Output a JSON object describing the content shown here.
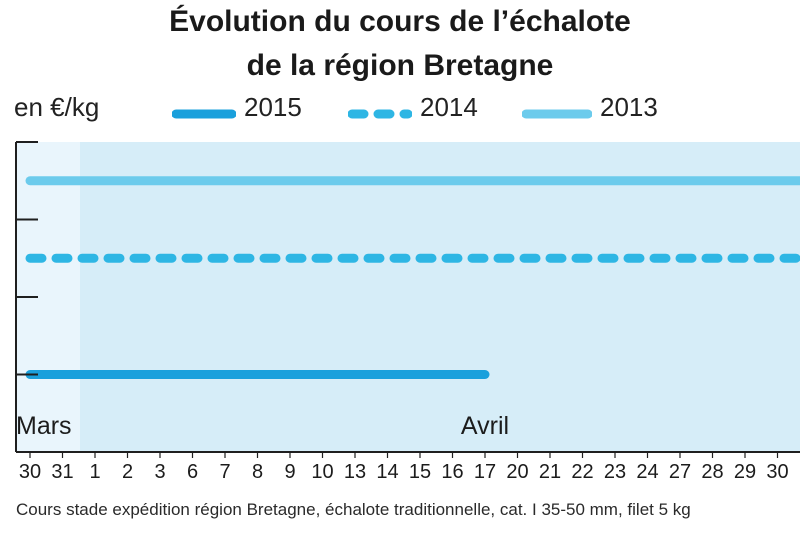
{
  "title_lines": [
    "Évolution du cours de l’échalote",
    "de la région Bretagne"
  ],
  "unit_label": "en €/kg",
  "source": "Cours stade expédition région Bretagne, échalote traditionnelle, cat. I 35-50 mm, filet 5 kg",
  "colors": {
    "plot_background": "#d6edf8",
    "plot_background_first_days": "#e9f5fc",
    "axis": "#1f1f1f",
    "series_2015": "#1aa0dc",
    "series_2014": "#2eb6e4",
    "series_2013": "#6ccbec"
  },
  "chart_data": {
    "type": "line",
    "title": "Évolution du cours de l’échalote de la région Bretagne",
    "ylabel": "en €/kg",
    "xlabel": "",
    "month_labels": [
      {
        "label": "Mars",
        "at": "30"
      },
      {
        "label": "Avril",
        "at": "17"
      }
    ],
    "x": [
      "30",
      "31",
      "1",
      "2",
      "3",
      "6",
      "7",
      "8",
      "9",
      "10",
      "13",
      "14",
      "15",
      "16",
      "17",
      "20",
      "21",
      "22",
      "23",
      "24",
      "27",
      "28",
      "29",
      "30"
    ],
    "y_tick_values_visible": false,
    "ylim": [
      0,
      4
    ],
    "y_ticks": [
      0,
      1,
      2,
      3,
      4
    ],
    "series": [
      {
        "name": "2015",
        "style": "solid",
        "color": "#1aa0dc",
        "values": [
          1,
          1,
          1,
          1,
          1,
          1,
          1,
          1,
          1,
          1,
          1,
          1,
          1,
          1,
          1,
          null,
          null,
          null,
          null,
          null,
          null,
          null,
          null,
          null
        ]
      },
      {
        "name": "2014",
        "style": "dashed",
        "color": "#2eb6e4",
        "values": [
          2.5,
          2.5,
          2.5,
          2.5,
          2.5,
          2.5,
          2.5,
          2.5,
          2.5,
          2.5,
          2.5,
          2.5,
          2.5,
          2.5,
          2.5,
          2.5,
          2.5,
          2.5,
          2.5,
          2.5,
          2.5,
          2.5,
          2.5,
          2.5
        ]
      },
      {
        "name": "2013",
        "style": "solid",
        "color": "#6ccbec",
        "values": [
          3.5,
          3.5,
          3.5,
          3.5,
          3.5,
          3.5,
          3.5,
          3.5,
          3.5,
          3.5,
          3.5,
          3.5,
          3.5,
          3.5,
          3.5,
          3.5,
          3.5,
          3.5,
          3.5,
          3.5,
          3.5,
          3.5,
          3.5,
          3.5
        ]
      }
    ],
    "legend_position": "top",
    "grid": false
  }
}
